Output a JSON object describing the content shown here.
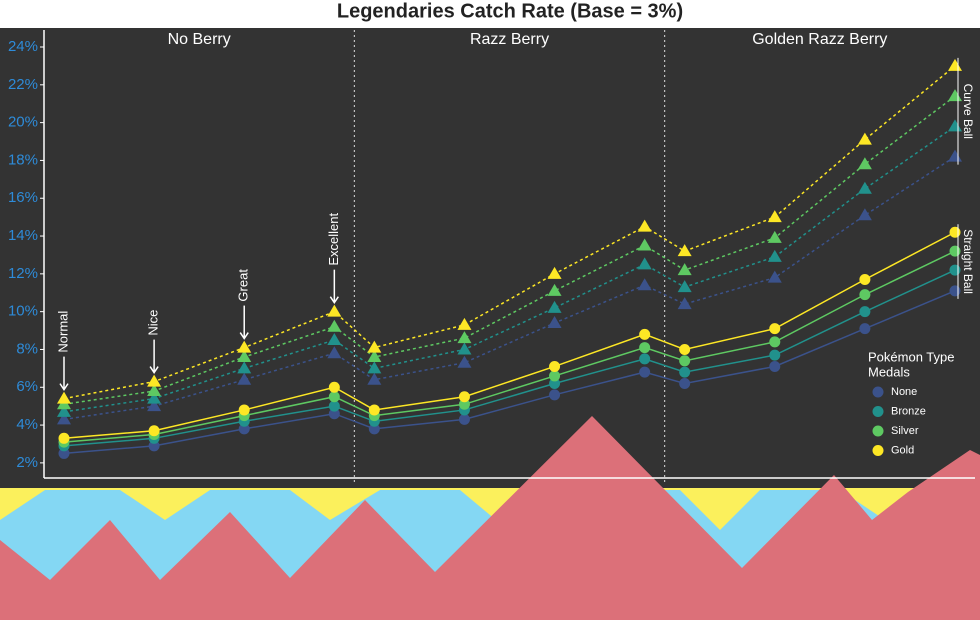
{
  "chart_data": {
    "type": "line",
    "title": "Legendaries Catch Rate (Base = 3%)",
    "panels": [
      "No Berry",
      "Razz Berry",
      "Golden Razz Berry"
    ],
    "points_per_panel": 4,
    "throw_annotations": [
      "Normal",
      "Nice",
      "Great",
      "Excellent"
    ],
    "ylim": [
      1.2,
      24.9
    ],
    "yticks": [
      {
        "value": 2,
        "label": "2%"
      },
      {
        "value": 4,
        "label": "4%"
      },
      {
        "value": 6,
        "label": "6%"
      },
      {
        "value": 8,
        "label": "8%"
      },
      {
        "value": 10,
        "label": "10%"
      },
      {
        "value": 12,
        "label": "12%"
      },
      {
        "value": 14,
        "label": "14%"
      },
      {
        "value": 16,
        "label": "16%"
      },
      {
        "value": 18,
        "label": "18%"
      },
      {
        "value": 20,
        "label": "20%"
      },
      {
        "value": 22,
        "label": "22%"
      },
      {
        "value": 24,
        "label": "24%"
      }
    ],
    "legend_position": "right",
    "legend": {
      "title": [
        "Pokémon Type",
        "Medals"
      ],
      "items": [
        {
          "name": "None",
          "color": "#3b528b"
        },
        {
          "name": "Bronze",
          "color": "#21918c"
        },
        {
          "name": "Silver",
          "color": "#5ec962"
        },
        {
          "name": "Gold",
          "color": "#fde725"
        }
      ]
    },
    "groups": [
      {
        "name": "Curve Ball",
        "marker": "triangle",
        "dashed": true,
        "series": [
          [
            4.3,
            5.0,
            6.4,
            7.8,
            6.4,
            7.3,
            9.4,
            11.4,
            10.4,
            11.8,
            15.1,
            18.2
          ],
          [
            4.7,
            5.4,
            7.0,
            8.5,
            7.0,
            8.0,
            10.2,
            12.5,
            11.3,
            12.9,
            16.5,
            19.8
          ],
          [
            5.1,
            5.8,
            7.6,
            9.2,
            7.6,
            8.6,
            11.1,
            13.5,
            12.2,
            13.9,
            17.8,
            21.4
          ],
          [
            5.4,
            6.3,
            8.1,
            10.0,
            8.1,
            9.3,
            12.0,
            14.5,
            13.2,
            15.0,
            19.1,
            23.0
          ]
        ]
      },
      {
        "name": "Straight Ball",
        "marker": "circle",
        "dashed": false,
        "series": [
          [
            2.5,
            2.9,
            3.8,
            4.6,
            3.8,
            4.3,
            5.6,
            6.8,
            6.2,
            7.1,
            9.1,
            11.1
          ],
          [
            2.9,
            3.3,
            4.2,
            5.0,
            4.2,
            4.8,
            6.2,
            7.5,
            6.8,
            7.7,
            10.0,
            12.2
          ],
          [
            3.1,
            3.5,
            4.5,
            5.5,
            4.5,
            5.1,
            6.6,
            8.1,
            7.4,
            8.4,
            10.9,
            13.2
          ],
          [
            3.3,
            3.7,
            4.8,
            6.0,
            4.8,
            5.5,
            7.1,
            8.8,
            8.0,
            9.1,
            11.7,
            14.2
          ]
        ]
      }
    ]
  }
}
